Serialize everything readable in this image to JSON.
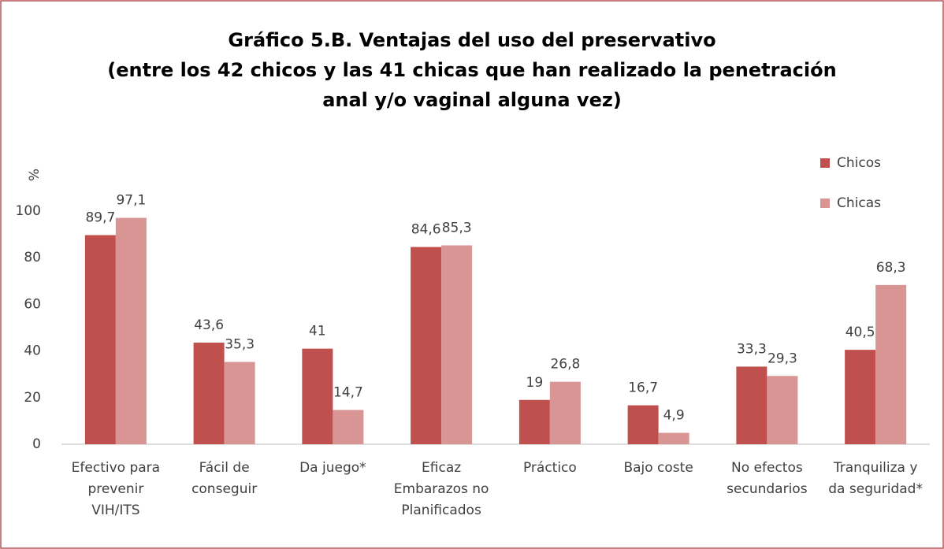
{
  "chart_data": {
    "type": "bar",
    "title": [
      "Gráfico 5.B. Ventajas del uso del preservativo",
      "(entre los 42 chicos y las 41 chicas que han realizado la penetración",
      "anal y/o vaginal alguna vez)"
    ],
    "y_label": "%",
    "categories": [
      [
        "Efectivo para",
        "prevenir",
        "VIH/ITS"
      ],
      [
        "Fácil de",
        "conseguir"
      ],
      [
        "Da juego*"
      ],
      [
        "Eficaz",
        "Embarazos no",
        "Planificados"
      ],
      [
        "Práctico"
      ],
      [
        "Bajo coste"
      ],
      [
        "No efectos",
        "secundarios"
      ],
      [
        "Tranquiliza y",
        "da seguridad*"
      ]
    ],
    "series": [
      {
        "name": "Chicos",
        "color": "#c0504d",
        "values": [
          89.7,
          43.6,
          41,
          84.6,
          19,
          16.7,
          33.3,
          40.5
        ],
        "value_labels": [
          "89,7",
          "43,6",
          "41",
          "84,6",
          "19",
          "16,7",
          "33,3",
          "40,5"
        ]
      },
      {
        "name": "Chicas",
        "color": "#d99594",
        "values": [
          97.1,
          35.3,
          14.7,
          85.3,
          26.8,
          4.9,
          29.3,
          68.3
        ],
        "value_labels": [
          "97,1",
          "35,3",
          "14,7",
          "85,3",
          "26,8",
          "4,9",
          "29,3",
          "68,3"
        ]
      }
    ],
    "ylim": [
      0,
      100
    ],
    "yticks": [
      0,
      20,
      40,
      60,
      80,
      100
    ],
    "grid": false,
    "legend": "right"
  }
}
